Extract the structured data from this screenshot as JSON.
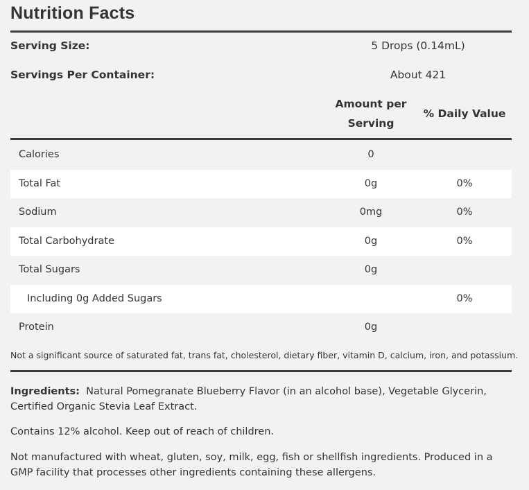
{
  "header": {
    "title": "Nutrition Facts"
  },
  "serving": [
    {
      "label": "Serving Size:",
      "value": "5 Drops (0.14mL)"
    },
    {
      "label": "Servings Per Container:",
      "value": "About 421"
    }
  ],
  "table": {
    "columns": [
      "Amount per Serving",
      "% Daily Value"
    ],
    "rows": [
      {
        "name": "Calories",
        "amount": "0"
      },
      {
        "name": "Total Fat",
        "amount": "0g",
        "daily_value": "0%"
      },
      {
        "name": "Sodium",
        "amount": "0mg",
        "daily_value": "0%"
      },
      {
        "name": "Total Carbohydrate",
        "amount": "0g",
        "daily_value": "0%"
      },
      {
        "name": "Total Sugars",
        "amount": "0g"
      },
      {
        "name": "Including 0g Added Sugars",
        "daily_value": "0%"
      },
      {
        "name": "Protein",
        "amount": "0g"
      }
    ],
    "footnote": "Not a significant source of saturated fat, trans fat, cholesterol, dietary fiber, vitamin D, calcium, iron, and potassium."
  },
  "ingredients": {
    "label": "Ingredients:",
    "text": "Natural Pomegranate Blueberry Flavor (in an alcohol base), Vegetable Glycerin, Certified Organic Stevia Leaf Extract."
  },
  "notes": [
    "Contains 12% alcohol. Keep out of reach of children.",
    "Not manufactured with wheat, gluten, soy, milk, egg, fish or shellfish ingredients. Produced in a GMP facility that processes other ingredients containing these allergens."
  ]
}
